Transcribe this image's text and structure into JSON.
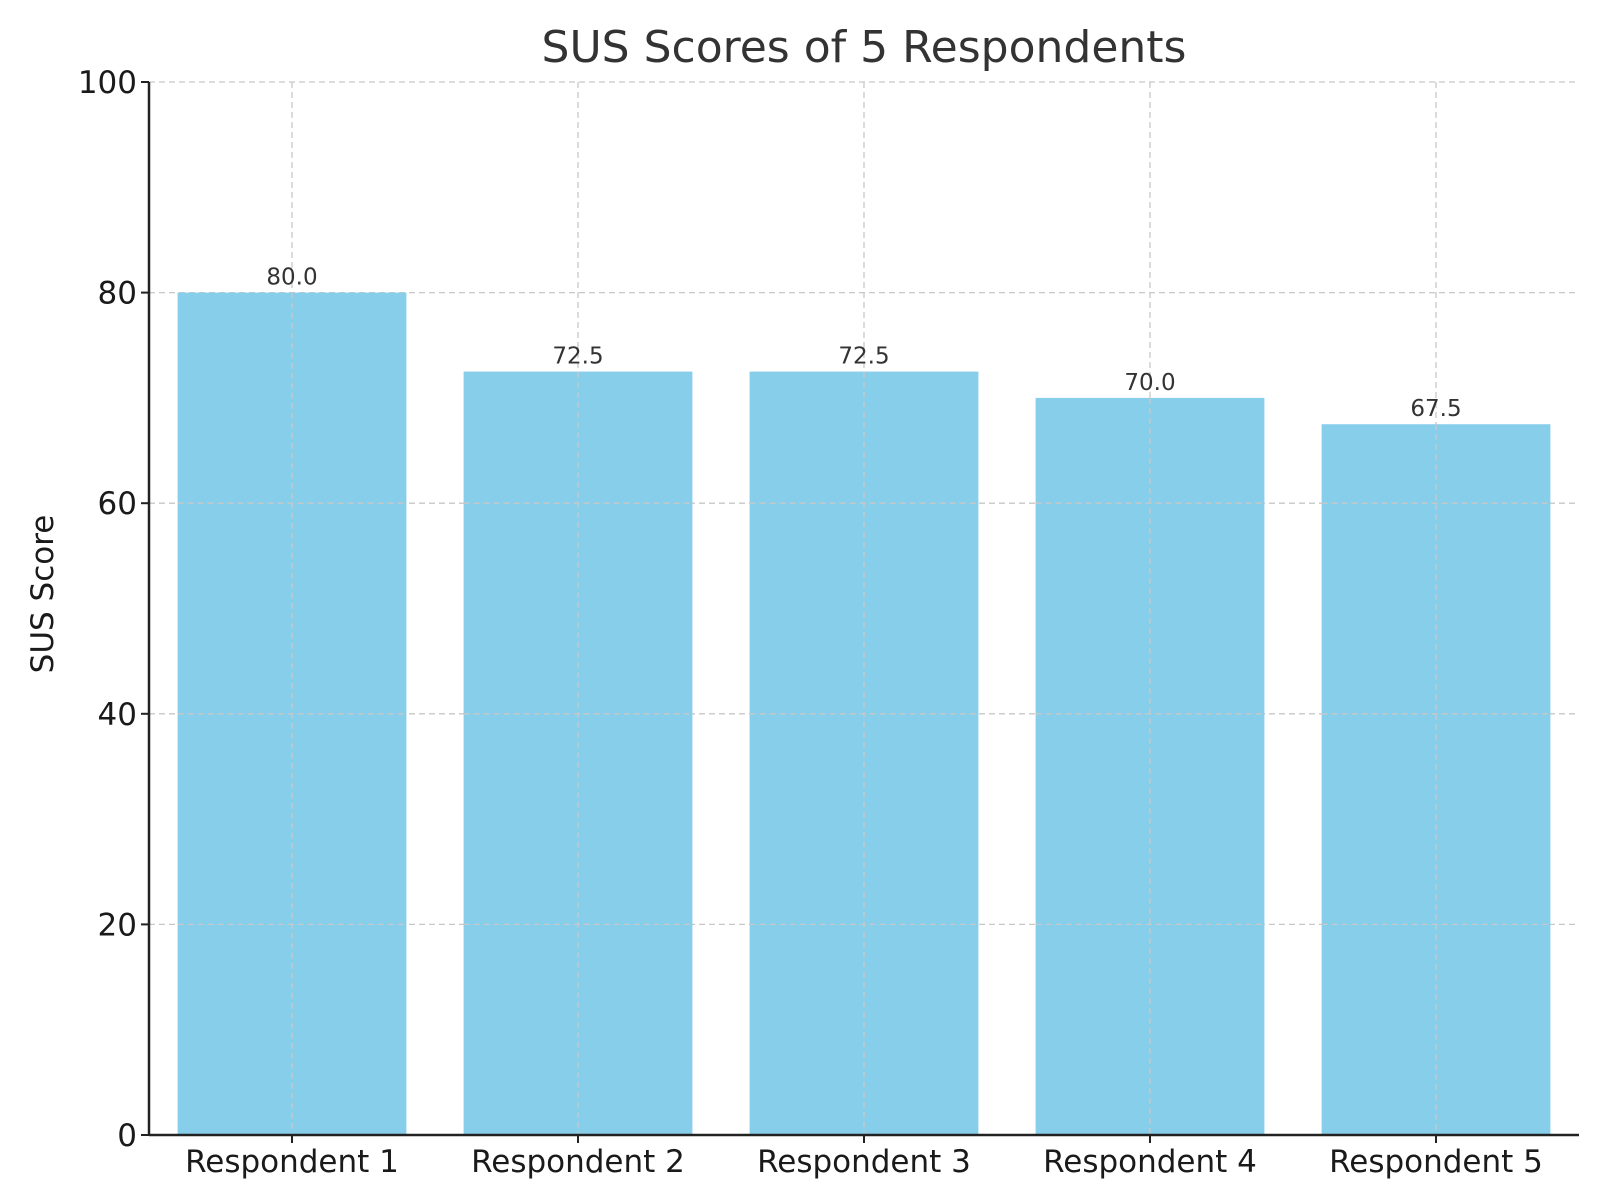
{
  "chart_data": {
    "type": "bar",
    "title": "SUS Scores of 5 Respondents",
    "xlabel": "",
    "ylabel": "SUS Score",
    "categories": [
      "Respondent 1",
      "Respondent 2",
      "Respondent 3",
      "Respondent 4",
      "Respondent 5"
    ],
    "values": [
      80.0,
      72.5,
      72.5,
      70.0,
      67.5
    ],
    "value_labels": [
      "80.0",
      "72.5",
      "72.5",
      "70.0",
      "67.5"
    ],
    "ylim": [
      0,
      100
    ],
    "yticks": [
      0,
      20,
      40,
      60,
      80,
      100
    ],
    "grid": true,
    "bar_color": "#87CEEB"
  }
}
